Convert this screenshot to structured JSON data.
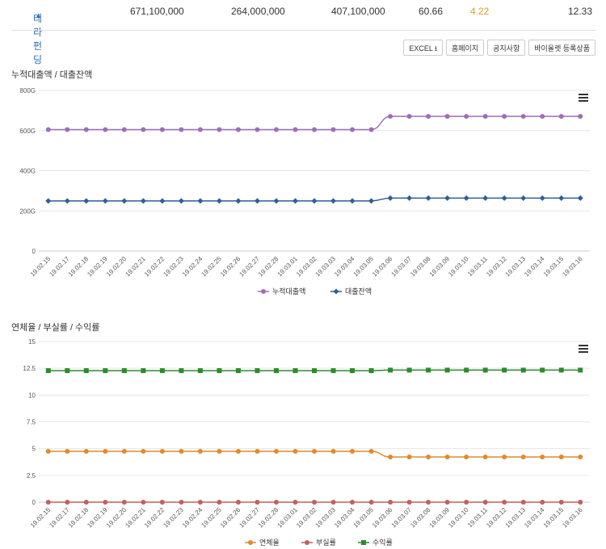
{
  "summary": {
    "company": "테라펀딩",
    "chevron": "up-chevron-icon",
    "values": [
      "671,100,000",
      "264,000,000",
      "407,100,000",
      "60.66",
      "4.22",
      "12.33"
    ]
  },
  "buttons": {
    "excel": "EXCEL",
    "homepage": "홈페이지",
    "notice": "공지사항",
    "products": "바이올렛 등록상품"
  },
  "colors": {
    "cumulative": "#9e6fb5",
    "balance": "#2f5f96",
    "overdue": "#e08a2e",
    "npl": "#c06060",
    "yield": "#2d8a2d",
    "grid": "#e6e6e6",
    "summary_rate": "#d4a032"
  },
  "chart_data": [
    {
      "type": "line",
      "title": "누적대출액 / 대출잔액",
      "categories": [
        "19.02.15",
        "19.02.17",
        "19.02.18",
        "19.02.19",
        "19.02.20",
        "19.02.21",
        "19.02.22",
        "19.02.23",
        "19.02.24",
        "19.02.25",
        "19.02.26",
        "19.02.27",
        "19.02.28",
        "19.03.01",
        "19.03.02",
        "19.03.03",
        "19.03.04",
        "19.03.05",
        "19.03.06",
        "19.03.07",
        "19.03.08",
        "19.03.09",
        "19.03.10",
        "19.03.11",
        "19.03.12",
        "19.03.13",
        "19.03.14",
        "19.03.15",
        "19.03.16"
      ],
      "ylim": [
        0,
        800
      ],
      "yticks": [
        0,
        200,
        400,
        600,
        800
      ],
      "yticklabels": [
        "0",
        "200G",
        "400G",
        "600G",
        "800G"
      ],
      "series": [
        {
          "name": "누적대출액",
          "values": [
            605,
            605,
            605,
            605,
            605,
            605,
            605,
            605,
            605,
            605,
            605,
            605,
            605,
            605,
            605,
            605,
            605,
            605,
            671,
            671,
            671,
            671,
            671,
            671,
            671,
            671,
            671,
            671,
            671
          ]
        },
        {
          "name": "대출잔액",
          "values": [
            250,
            250,
            250,
            250,
            250,
            250,
            250,
            250,
            250,
            250,
            250,
            250,
            250,
            250,
            250,
            250,
            250,
            250,
            264,
            264,
            264,
            264,
            264,
            264,
            264,
            264,
            264,
            264,
            264
          ]
        }
      ],
      "grid": true,
      "legend": "bottom-center"
    },
    {
      "type": "line",
      "title": "연체율 / 부실률 / 수익률",
      "categories": [
        "19.02.15",
        "19.02.17",
        "19.02.18",
        "19.02.19",
        "19.02.20",
        "19.02.21",
        "19.02.22",
        "19.02.23",
        "19.02.24",
        "19.02.25",
        "19.02.26",
        "19.02.27",
        "19.02.28",
        "19.03.01",
        "19.03.02",
        "19.03.03",
        "19.03.04",
        "19.03.05",
        "19.03.06",
        "19.03.07",
        "19.03.08",
        "19.03.09",
        "19.03.10",
        "19.03.11",
        "19.03.12",
        "19.03.13",
        "19.03.14",
        "19.03.15",
        "19.03.16"
      ],
      "ylim": [
        0,
        15
      ],
      "yticks": [
        0,
        2.5,
        5,
        7.5,
        10,
        12.5,
        15
      ],
      "yticklabels": [
        "0",
        "2.5",
        "5",
        "7.5",
        "10",
        "12.5",
        "15"
      ],
      "series": [
        {
          "name": "연체율",
          "values": [
            4.75,
            4.75,
            4.75,
            4.75,
            4.75,
            4.75,
            4.75,
            4.75,
            4.75,
            4.75,
            4.75,
            4.75,
            4.75,
            4.75,
            4.75,
            4.75,
            4.75,
            4.75,
            4.22,
            4.22,
            4.22,
            4.22,
            4.22,
            4.22,
            4.22,
            4.22,
            4.22,
            4.22,
            4.22
          ]
        },
        {
          "name": "부실률",
          "values": [
            0,
            0,
            0,
            0,
            0,
            0,
            0,
            0,
            0,
            0,
            0,
            0,
            0,
            0,
            0,
            0,
            0,
            0,
            0,
            0,
            0,
            0,
            0,
            0,
            0,
            0,
            0,
            0,
            0
          ]
        },
        {
          "name": "수익률",
          "values": [
            12.28,
            12.28,
            12.28,
            12.28,
            12.28,
            12.28,
            12.28,
            12.28,
            12.28,
            12.28,
            12.28,
            12.28,
            12.28,
            12.28,
            12.28,
            12.28,
            12.28,
            12.28,
            12.33,
            12.33,
            12.33,
            12.33,
            12.33,
            12.33,
            12.33,
            12.33,
            12.33,
            12.33,
            12.33
          ]
        }
      ],
      "grid": true,
      "legend": "bottom-center"
    }
  ]
}
